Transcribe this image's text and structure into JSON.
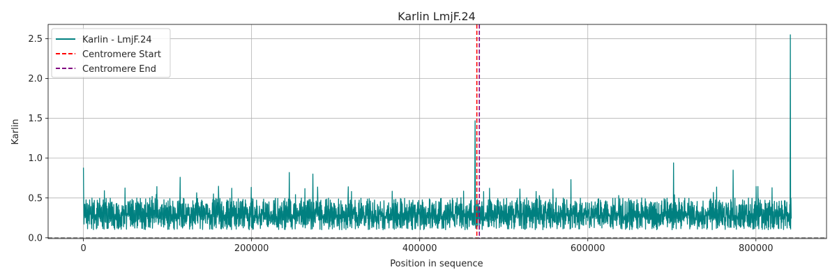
{
  "chart_data": {
    "type": "line",
    "title": "Karlin LmjF.24",
    "xlabel": "Position in sequence",
    "ylabel": "Karlin",
    "xlim": [
      -42000,
      884000
    ],
    "ylim": [
      -0.01,
      2.68
    ],
    "xticks": [
      0,
      200000,
      400000,
      600000,
      800000
    ],
    "xtick_labels": [
      "0",
      "200000",
      "400000",
      "600000",
      "800000"
    ],
    "yticks": [
      0.0,
      0.5,
      1.0,
      1.5,
      2.0,
      2.5
    ],
    "ytick_labels": [
      "0.0",
      "0.5",
      "1.0",
      "1.5",
      "2.0",
      "2.5"
    ],
    "grid": true,
    "legend_position": "top-left",
    "series": [
      {
        "name": "Karlin - LmjF.24",
        "color": "#008080",
        "x_range": [
          0,
          842000
        ],
        "typical_range": [
          0.1,
          0.5
        ],
        "peaks": [
          {
            "x": 0,
            "y": 0.88
          },
          {
            "x": 115000,
            "y": 0.76
          },
          {
            "x": 245000,
            "y": 0.82
          },
          {
            "x": 273000,
            "y": 0.8
          },
          {
            "x": 466000,
            "y": 1.47
          },
          {
            "x": 580000,
            "y": 0.73
          },
          {
            "x": 702000,
            "y": 0.94
          },
          {
            "x": 773000,
            "y": 0.85
          },
          {
            "x": 841000,
            "y": 2.55
          }
        ]
      }
    ],
    "vlines": [
      {
        "name": "Centromere Start",
        "x": 468000,
        "color": "#ff0000",
        "style": "dashed"
      },
      {
        "name": "Centromere End",
        "x": 471000,
        "color": "#800080",
        "style": "dashed"
      }
    ],
    "hline": {
      "y": 0.0,
      "color": "#808080",
      "style": "dashed"
    }
  }
}
